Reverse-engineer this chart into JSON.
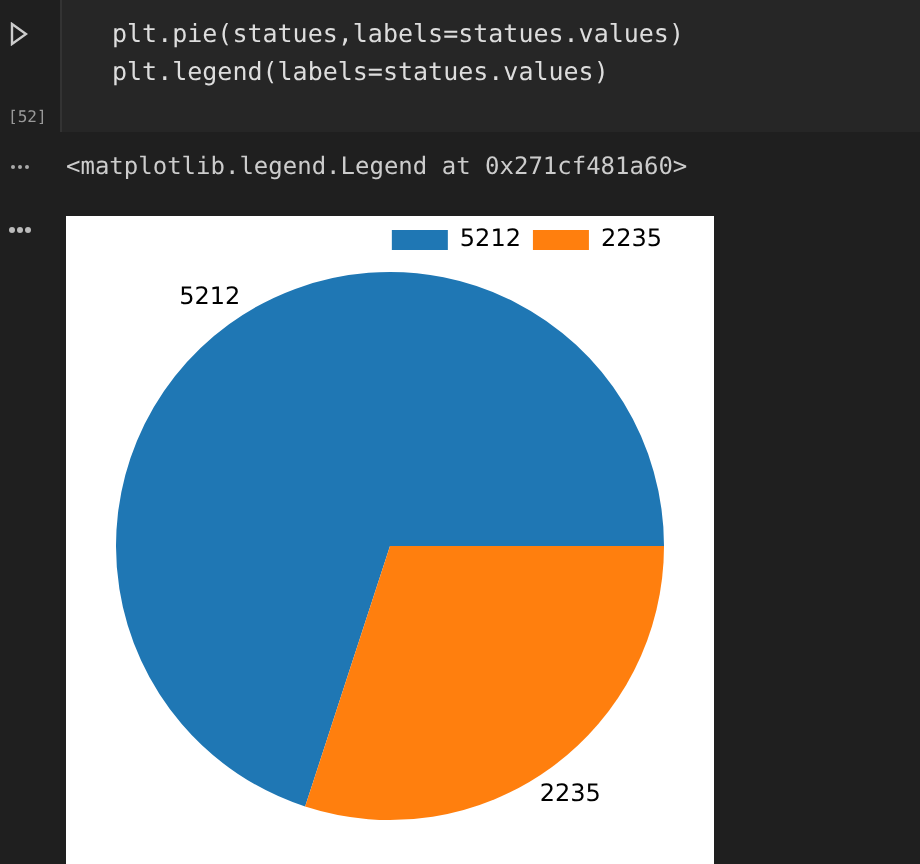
{
  "chart_data": {
    "type": "pie",
    "categories": [
      "5212",
      "2235"
    ],
    "values": [
      5212,
      2235
    ],
    "colors": [
      "#1f77b4",
      "#ff7f0e"
    ],
    "data_labels": true,
    "legend": "top right",
    "annotations": [
      "plt.pie(statues,labels=statues.values)",
      "plt.legend(labels=statues.values)",
      "[52]",
      "<matplotlib.legend.Legend at 0x271cf481a60>"
    ]
  }
}
